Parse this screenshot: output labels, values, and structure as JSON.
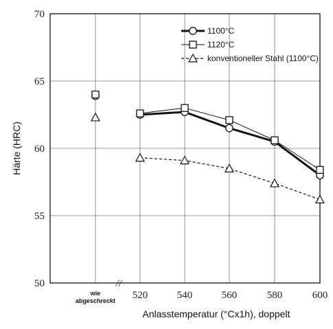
{
  "chart_data": {
    "type": "line",
    "xlabel": "Anlasstemperatur (°Cx1h), doppelt",
    "ylabel": "Härte (HRC)",
    "ylim": [
      50,
      70
    ],
    "yticks": [
      "50",
      "55",
      "60",
      "65",
      "70"
    ],
    "x_categories": [
      "wie abgeschreckt",
      "520",
      "540",
      "560",
      "580",
      "600"
    ],
    "category_label_lines": [
      "wie",
      "abgeschreckt"
    ],
    "axis_break_symbol": "//",
    "grid": true,
    "legend_position": "top-right",
    "series": [
      {
        "name": "1100°C",
        "marker": "circle",
        "line": "thick-solid",
        "as_quenched": 63.9,
        "x": [
          520,
          540,
          560,
          580,
          600
        ],
        "values": [
          62.5,
          62.7,
          61.5,
          60.5,
          58.0
        ]
      },
      {
        "name": "1120°C",
        "marker": "square",
        "line": "thin-solid",
        "as_quenched": 64.0,
        "x": [
          520,
          540,
          560,
          580,
          600
        ],
        "values": [
          62.6,
          63.0,
          62.1,
          60.6,
          58.4
        ]
      },
      {
        "name": "konventioneller Stahl (1100°C)",
        "marker": "triangle",
        "line": "dashed",
        "as_quenched": 62.3,
        "x": [
          520,
          540,
          560,
          580,
          600
        ],
        "values": [
          59.3,
          59.1,
          58.5,
          57.4,
          56.2
        ]
      }
    ]
  }
}
